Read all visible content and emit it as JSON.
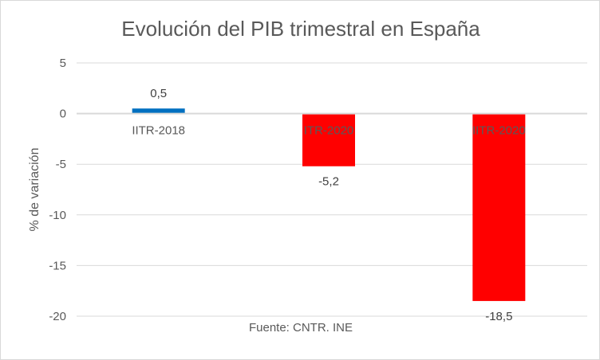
{
  "chart_data": {
    "type": "bar",
    "title": "Evolución del PIB trimestral en España",
    "ylabel": "% de variación",
    "categories": [
      "IITR-2018",
      "ITR-2020",
      "IITR-2020"
    ],
    "values": [
      0.5,
      -5.2,
      -18.5
    ],
    "data_labels": [
      "0,5",
      "-5,2",
      "-18,5"
    ],
    "colors": [
      "#0070c0",
      "#ff0000",
      "#ff0000"
    ],
    "ylim": [
      -20,
      5
    ],
    "yticks": [
      5,
      0,
      -5,
      -10,
      -15,
      -20
    ],
    "grid": true,
    "source": "Fuente: CNTR. INE"
  }
}
